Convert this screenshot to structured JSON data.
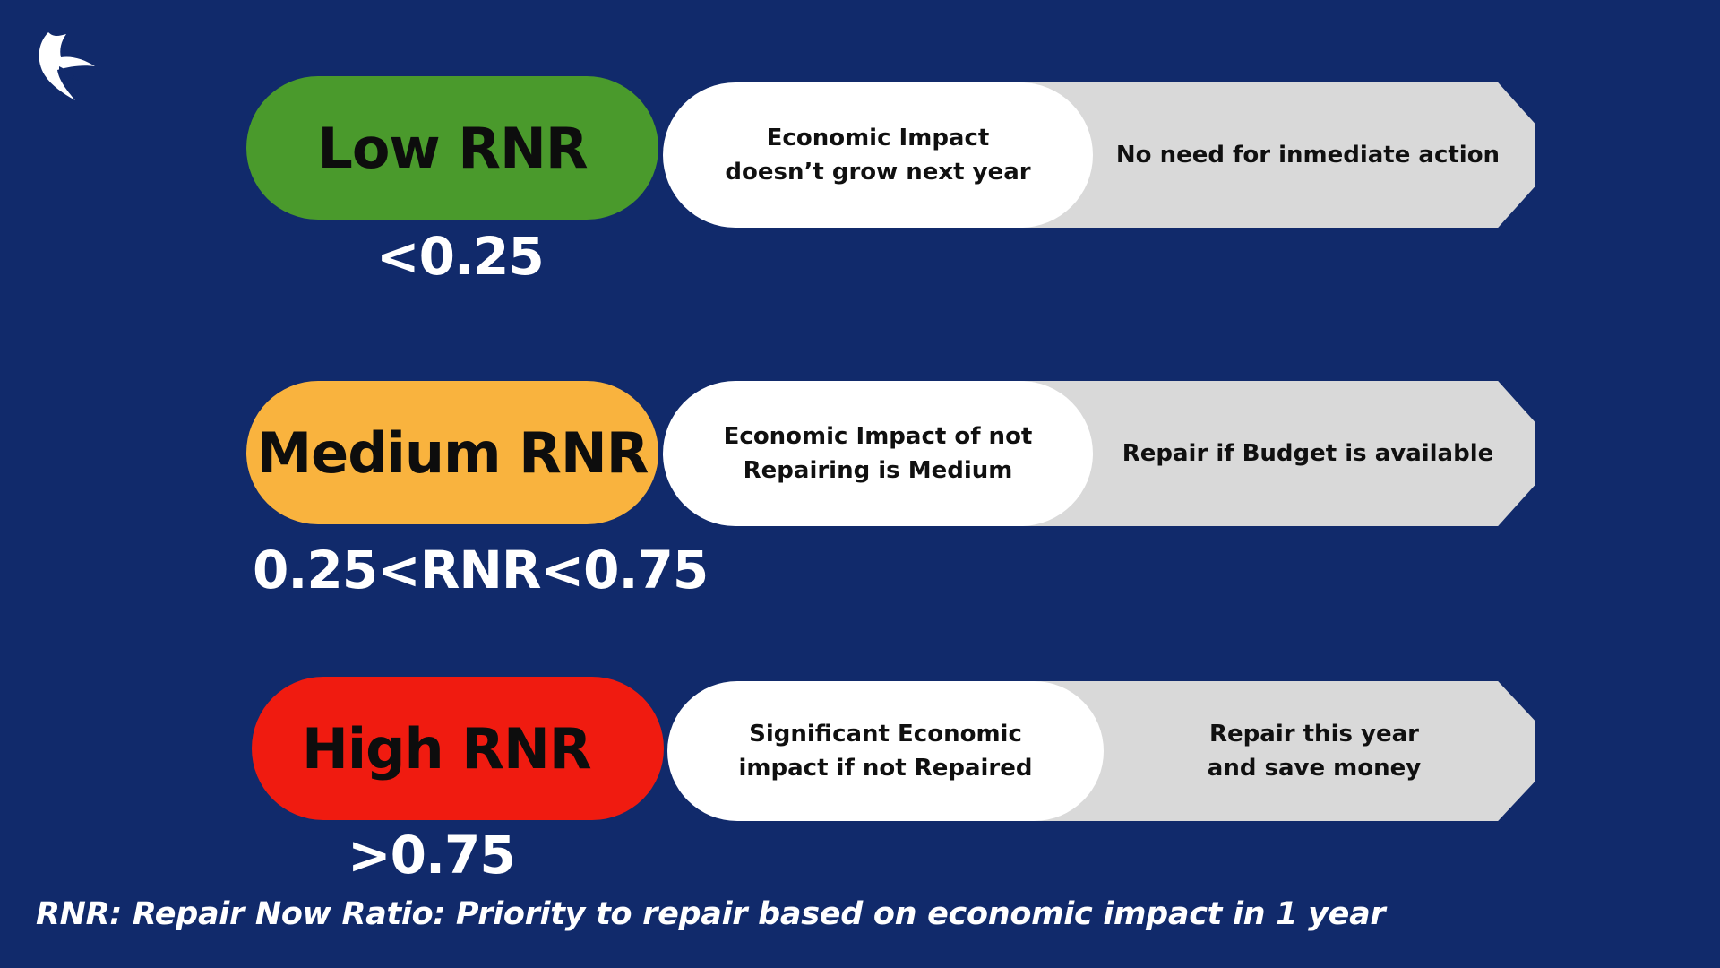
{
  "logo": {
    "icon": "bird-wing-logo-icon"
  },
  "rows": [
    {
      "rating": "Low RNR",
      "threshold": "<0.25",
      "color": "#4a9a2c",
      "impact_line1": "Economic Impact",
      "impact_line2": "doesn’t grow next year",
      "action_line1": "No need for inmediate action",
      "action_line2": ""
    },
    {
      "rating": "Medium RNR",
      "threshold": "0.25<RNR<0.75",
      "color": "#f9b33e",
      "impact_line1": "Economic Impact of not",
      "impact_line2": "Repairing is Medium",
      "action_line1": "Repair if Budget  is available",
      "action_line2": ""
    },
    {
      "rating": "High RNR",
      "threshold": ">0.75",
      "color": "#f01b10",
      "impact_line1": "Significant Economic",
      "impact_line2": "impact if not Repaired",
      "action_line1": "Repair this year",
      "action_line2": "and save money"
    }
  ],
  "footnote": "RNR: Repair Now Ratio: Priority to repair based on economic impact in 1 year",
  "colors": {
    "background": "#112a6b",
    "panel_white": "#ffffff",
    "panel_grey": "#d9d9d9"
  }
}
